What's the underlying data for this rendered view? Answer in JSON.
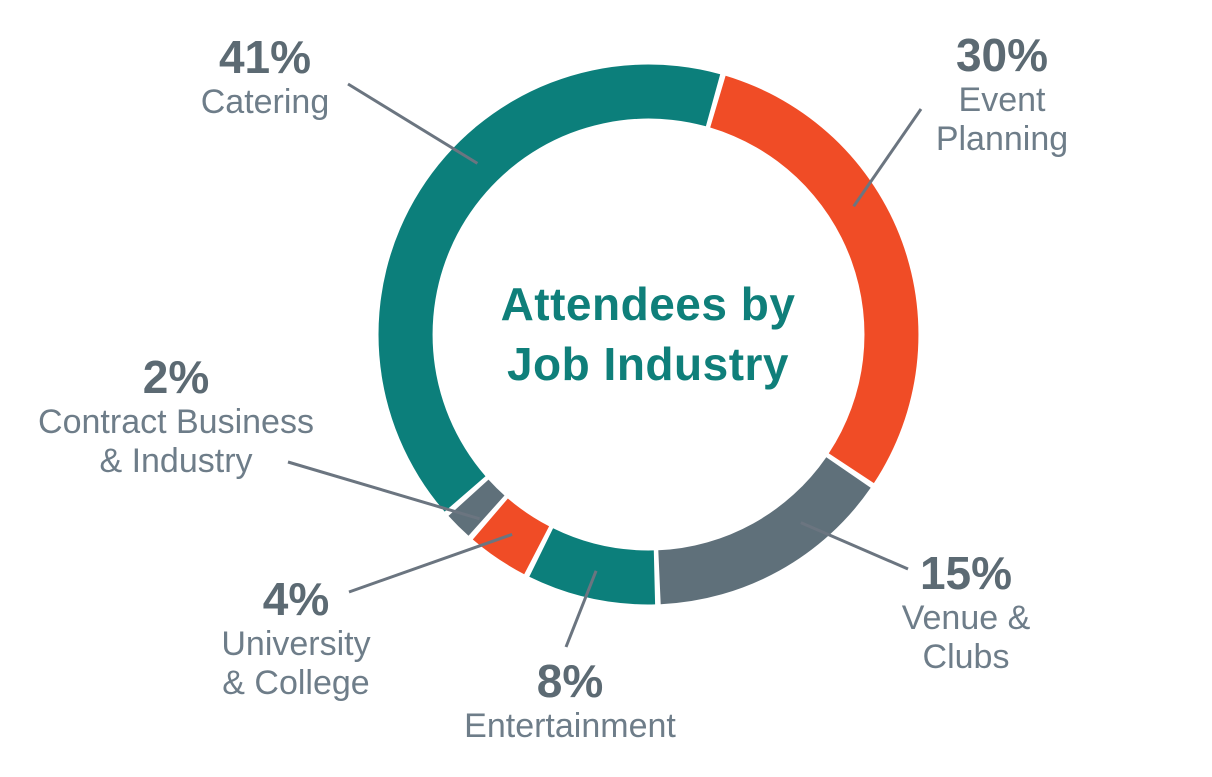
{
  "chart_data": {
    "type": "pie",
    "variant": "donut",
    "title": "Attendees by Job Industry",
    "title_lines": [
      "Attendees by",
      "Job Industry"
    ],
    "direction": "clockwise",
    "start_angle_deg": 16,
    "legend_position": "callout-labels",
    "segments": [
      {
        "label": "Event Planning",
        "label_lines": [
          "Event",
          "Planning"
        ],
        "value_pct": 30,
        "value_label": "30%",
        "color": "#f04c26"
      },
      {
        "label": "Venue & Clubs",
        "label_lines": [
          "Venue &",
          "Clubs"
        ],
        "value_pct": 15,
        "value_label": "15%",
        "color": "#5f707a"
      },
      {
        "label": "Entertainment",
        "label_lines": [
          "Entertainment"
        ],
        "value_pct": 8,
        "value_label": "8%",
        "color": "#0c7f7b"
      },
      {
        "label": "University & College",
        "label_lines": [
          "University",
          "& College"
        ],
        "value_pct": 4,
        "value_label": "4%",
        "color": "#f04c26"
      },
      {
        "label": "Contract Business & Industry",
        "label_lines": [
          "Contract Business",
          "& Industry"
        ],
        "value_pct": 2,
        "value_label": "2%",
        "color": "#5f707a"
      },
      {
        "label": "Catering",
        "label_lines": [
          "Catering"
        ],
        "value_pct": 41,
        "value_label": "41%",
        "color": "#0c7f7b"
      }
    ],
    "colors": {
      "teal": "#0c7f7b",
      "orange": "#f04c26",
      "gray": "#5f707a",
      "background": "#ffffff"
    },
    "title_color": "#0f7f7a",
    "value_text_color": "#5c6a73",
    "label_text_color": "#6e7d89",
    "leader_line_color": "#6b7580"
  }
}
